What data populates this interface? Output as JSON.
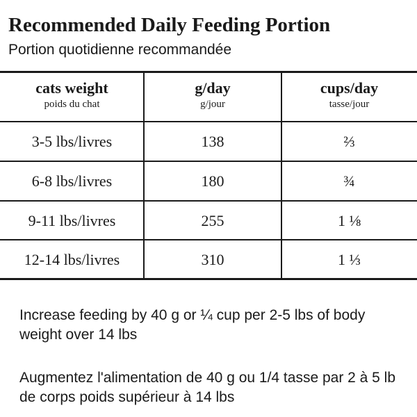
{
  "header": {
    "title": "Recommended Daily Feeding Portion",
    "subtitle": "Portion quotidienne recommandée"
  },
  "table": {
    "columns": [
      {
        "title": "cats weight",
        "subtitle": "poids du chat"
      },
      {
        "title": "g/day",
        "subtitle": "g/jour"
      },
      {
        "title": "cups/day",
        "subtitle": "tasse/jour"
      }
    ],
    "rows": [
      [
        "3-5 lbs/livres",
        "138",
        "⅔"
      ],
      [
        "6-8 lbs/livres",
        "180",
        "¾"
      ],
      [
        "9-11 lbs/livres",
        "255",
        "1 ⅛"
      ],
      [
        "12-14 lbs/livres",
        "310",
        "1 ⅓"
      ]
    ]
  },
  "notes": [
    "Increase feeding by 40 g or ¼ cup per 2-5 lbs of body weight over 14 lbs",
    "Augmentez l'alimentation de 40 g ou 1/4 tasse par 2 à 5 lb de corps poids supérieur à 14 lbs"
  ]
}
